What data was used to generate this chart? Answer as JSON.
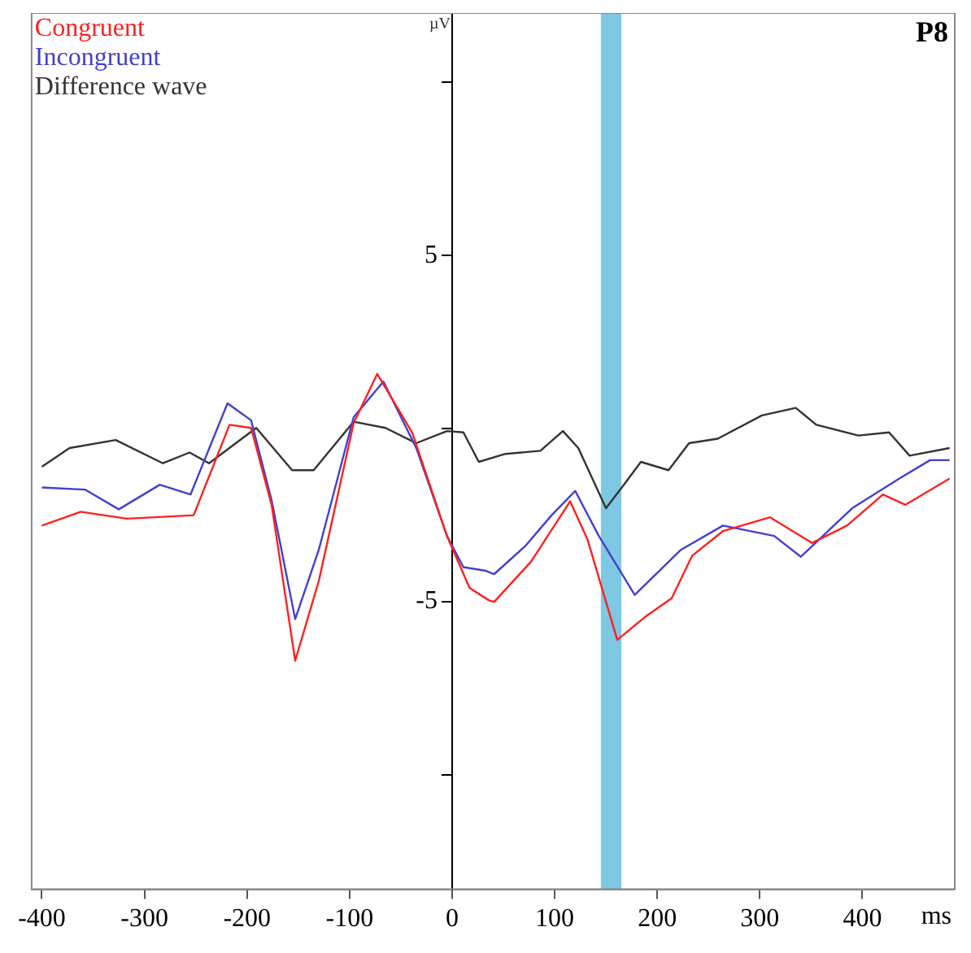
{
  "chart_data": {
    "type": "line",
    "title": "P8",
    "xlabel": "ms",
    "ylabel": "µV",
    "xlim": [
      -410,
      490
    ],
    "xticks": [
      -400,
      -300,
      -200,
      -100,
      0,
      100,
      200,
      300,
      400
    ],
    "ylim": [
      -13.3,
      12
    ],
    "yticks": [
      {
        "value": -10,
        "label": null
      },
      -5,
      {
        "value": 0,
        "label": null
      },
      5,
      {
        "value": 10,
        "label": null
      }
    ],
    "grid": false,
    "legend": "top left",
    "marker": "none",
    "line_style": "solid",
    "bands": [
      {
        "axis": "x",
        "from": 145,
        "to": 165,
        "color": "#7ec8e3"
      }
    ],
    "series": [
      {
        "name": "Congruent",
        "color": "#ff2020",
        "x": [
          -400,
          -362,
          -317,
          -252,
          -217,
          -196,
          -176,
          -153,
          -130,
          -96,
          -73,
          -39,
          -5,
          17,
          36,
          41,
          77,
          115,
          132,
          161,
          188,
          214,
          234,
          264,
          310,
          351,
          385,
          420,
          442,
          485
        ],
        "values": [
          -2.8,
          -2.4,
          -2.6,
          -2.5,
          0.11,
          0.02,
          -2.2,
          -6.7,
          -4.4,
          0.16,
          1.58,
          -0.11,
          -3.1,
          -4.6,
          -4.96,
          -5.0,
          -3.84,
          -2.1,
          -3.2,
          -6.1,
          -5.44,
          -4.9,
          -3.67,
          -2.96,
          -2.56,
          -3.3,
          -2.8,
          -1.9,
          -2.2,
          -1.44
        ]
      },
      {
        "name": "Incongruent",
        "color": "#4040d0",
        "x": [
          -400,
          -358,
          -325,
          -285,
          -255,
          -219,
          -196,
          -176,
          -153,
          -130,
          -96,
          -67,
          -35,
          -5,
          11,
          32,
          41,
          71,
          97,
          120,
          143,
          178,
          223,
          264,
          314,
          340,
          390,
          436,
          466,
          485
        ],
        "values": [
          -1.7,
          -1.76,
          -2.33,
          -1.62,
          -1.9,
          0.73,
          0.24,
          -2.07,
          -5.5,
          -3.5,
          0.33,
          1.36,
          -0.56,
          -3.1,
          -4.0,
          -4.1,
          -4.2,
          -3.4,
          -2.5,
          -1.8,
          -3.1,
          -4.8,
          -3.5,
          -2.8,
          -3.1,
          -3.7,
          -2.3,
          -1.44,
          -0.91,
          -0.91
        ]
      },
      {
        "name": "Difference wave",
        "color": "#333333",
        "x": [
          -400,
          -373,
          -328,
          -282,
          -256,
          -237,
          -191,
          -156,
          -135,
          -96,
          -65,
          -35,
          -5,
          11,
          26,
          52,
          86,
          108,
          123,
          150,
          168,
          184,
          211,
          231,
          259,
          302,
          335,
          355,
          396,
          426,
          446,
          485
        ],
        "values": [
          -1.1,
          -0.56,
          -0.33,
          -1.0,
          -0.69,
          -1.0,
          0.02,
          -1.2,
          -1.2,
          0.2,
          0.02,
          -0.42,
          -0.07,
          -0.11,
          -0.96,
          -0.73,
          -0.64,
          -0.07,
          -0.56,
          -2.3,
          -1.6,
          -0.96,
          -1.2,
          -0.42,
          -0.29,
          0.38,
          0.6,
          0.11,
          -0.2,
          -0.11,
          -0.78,
          -0.56
        ]
      }
    ]
  }
}
